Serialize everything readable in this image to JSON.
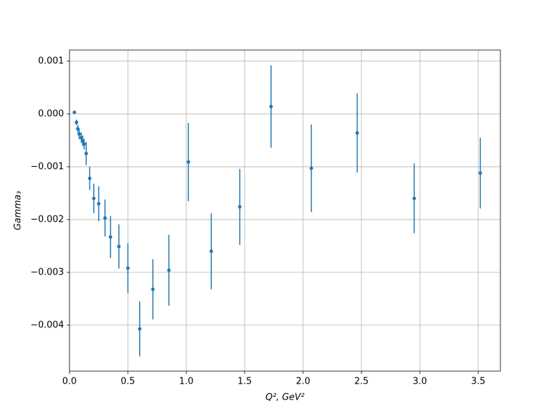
{
  "chart_data": {
    "type": "errorbar",
    "color": "#1f77b4",
    "grid": true,
    "xlabel": "Q², GeV²",
    "ylabel": "Gamma₃",
    "x": [
      0.042,
      0.06,
      0.071,
      0.083,
      0.101,
      0.113,
      0.125,
      0.143,
      0.173,
      0.208,
      0.25,
      0.304,
      0.351,
      0.423,
      0.5,
      0.601,
      0.714,
      0.851,
      1.018,
      1.214,
      1.458,
      1.726,
      2.071,
      2.464,
      2.952,
      3.518
    ],
    "y": [
      3e-05,
      -0.00016,
      -0.00028,
      -0.00038,
      -0.00045,
      -0.00051,
      -0.00057,
      -0.00075,
      -0.00122,
      -0.0016,
      -0.0017,
      -0.00197,
      -0.00233,
      -0.00251,
      -0.00292,
      -0.00407,
      -0.00332,
      -0.00296,
      -0.00091,
      -0.0026,
      -0.00176,
      0.00014,
      -0.00103,
      -0.00036,
      -0.0016,
      -0.00112
    ],
    "yerr": [
      3e-05,
      5e-05,
      7e-05,
      0.0001,
      0.0001,
      0.0001,
      0.0001,
      0.00022,
      0.00022,
      0.00028,
      0.00033,
      0.00035,
      0.0004,
      0.00042,
      0.00047,
      0.00052,
      0.00057,
      0.00067,
      0.00074,
      0.00072,
      0.00072,
      0.00078,
      0.00083,
      0.00075,
      0.00066,
      0.00067
    ],
    "xlim": [
      0,
      3.69
    ],
    "ylim": [
      -0.00487,
      0.00121
    ],
    "xticks": [
      {
        "value": 0,
        "label": "0.0"
      },
      0.5,
      {
        "value": 1,
        "label": "1.0"
      },
      1.5,
      {
        "value": 2,
        "label": "2.0"
      },
      2.5,
      {
        "value": 3,
        "label": "3.0"
      },
      3.5
    ],
    "yticks": [
      {
        "value": -0.004,
        "label": "−0.004"
      },
      {
        "value": -0.003,
        "label": "−0.003"
      },
      {
        "value": -0.002,
        "label": "−0.002"
      },
      {
        "value": -0.001,
        "label": "−0.001"
      },
      {
        "value": 0,
        "label": "0.000"
      },
      0.001
    ]
  }
}
